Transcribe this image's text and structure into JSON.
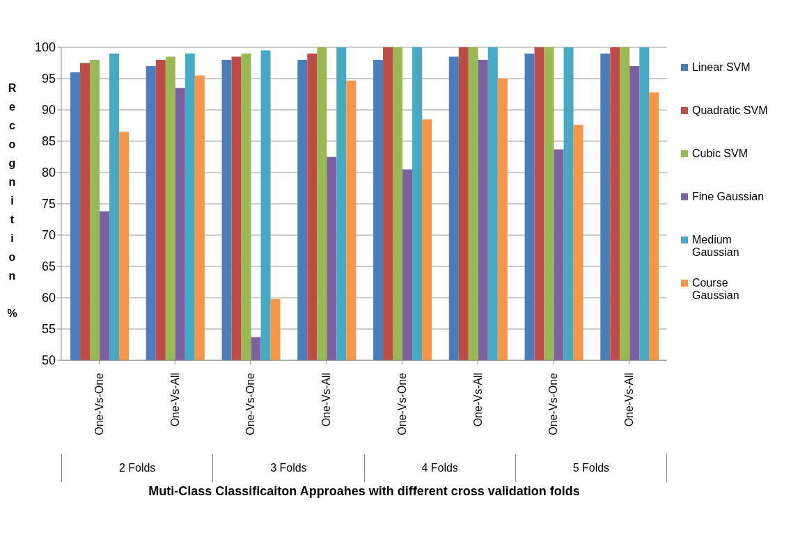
{
  "chart_data": {
    "type": "bar",
    "xlabel": "Muti-Class Classificaiton Approahes with different cross validation folds",
    "ylabel": "Recognition %",
    "categories": [
      "One-Vs-One",
      "One-Vs-All",
      "One-Vs-One",
      "One-Vs-All",
      "One-Vs-One",
      "One-Vs-All",
      "One-Vs-One",
      "One-Vs-All"
    ],
    "annotations": [
      "2 Folds",
      "3 Folds",
      "4 Folds",
      "5 Folds"
    ],
    "series": [
      {
        "name": "Linear SVM",
        "color": "#4a7ebb",
        "values": [
          96,
          97,
          98,
          98,
          98,
          98.5,
          99,
          99
        ]
      },
      {
        "name": "Quadratic SVM",
        "color": "#be4b48",
        "values": [
          97.5,
          98,
          98.5,
          99,
          100,
          100,
          100,
          100
        ]
      },
      {
        "name": "Cubic SVM",
        "color": "#98b954",
        "values": [
          98,
          98.5,
          99,
          100,
          100,
          100,
          100,
          100
        ]
      },
      {
        "name": "Fine Gaussian",
        "color": "#7d60a0",
        "values": [
          73.8,
          93.5,
          53.7,
          82.5,
          80.5,
          98,
          83.7,
          97
        ]
      },
      {
        "name": "Medium Gaussian",
        "color": "#46aac5",
        "values": [
          99,
          99,
          99.5,
          100,
          100,
          100,
          100,
          100
        ]
      },
      {
        "name": "Course Gaussian",
        "color": "#f79646",
        "values": [
          86.5,
          95.5,
          59.8,
          94.7,
          88.5,
          95,
          87.6,
          92.8
        ]
      }
    ],
    "ylim": [
      50,
      100
    ],
    "yticks": [
      50,
      55,
      60,
      65,
      70,
      75,
      80,
      85,
      90,
      95,
      100
    ],
    "grid": "y",
    "legend": "right"
  }
}
